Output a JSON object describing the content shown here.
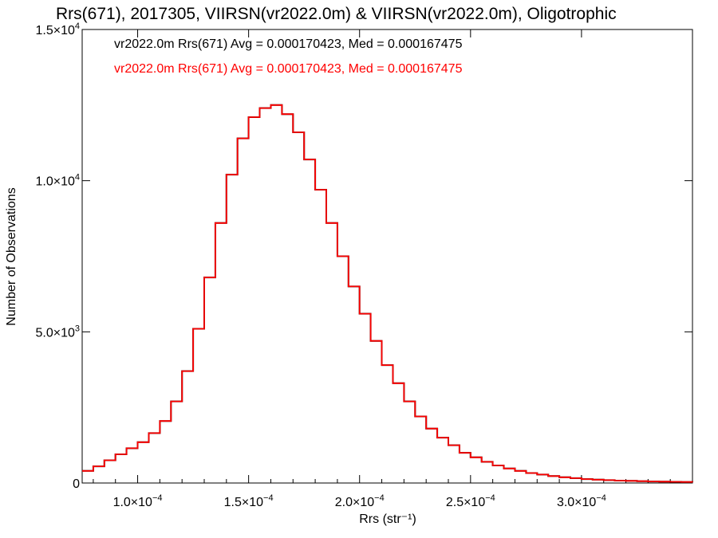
{
  "chart_data": {
    "type": "line",
    "title": "Rrs(671), 2017305, VIIRSN(vr2022.0m) & VIIRSN(vr2022.0m), Oligotrophic",
    "xlabel": "Rrs (str⁻¹)",
    "ylabel": "Number of Observations",
    "xlim": [
      7.5e-05,
      0.00035
    ],
    "ylim": [
      0,
      15000
    ],
    "x_ticks": [
      {
        "value": 0.0001,
        "mant": "1.0",
        "exp": "−4"
      },
      {
        "value": 0.00015,
        "mant": "1.5",
        "exp": "−4"
      },
      {
        "value": 0.0002,
        "mant": "2.0",
        "exp": "−4"
      },
      {
        "value": 0.00025,
        "mant": "2.5",
        "exp": "−4"
      },
      {
        "value": 0.0003,
        "mant": "3.0",
        "exp": "−4"
      }
    ],
    "y_ticks": [
      {
        "value": 0,
        "mant": "0",
        "exp": ""
      },
      {
        "value": 5000,
        "mant": "5.0",
        "exp": "3"
      },
      {
        "value": 10000,
        "mant": "1.0",
        "exp": "4"
      },
      {
        "value": 15000,
        "mant": "1.5",
        "exp": "4"
      }
    ],
    "grid": false,
    "legend_position": "top-left",
    "annotations": [
      {
        "text": "vr2022.0m Rrs(671) Avg = 0.000170423, Med = 0.000167475",
        "color": "#000000"
      },
      {
        "text": "vr2022.0m Rrs(671) Avg = 0.000170423, Med = 0.000167475",
        "color": "#ff0000"
      }
    ],
    "series": [
      {
        "color": "#000000",
        "x": [
          7.5e-05,
          8e-05,
          8.5e-05,
          9e-05,
          9.5e-05,
          0.0001,
          0.000105,
          0.00011,
          0.000115,
          0.00012,
          0.000125,
          0.00013,
          0.000135,
          0.00014,
          0.000145,
          0.00015,
          0.000155,
          0.00016,
          0.000165,
          0.00017,
          0.000175,
          0.00018,
          0.000185,
          0.00019,
          0.000195,
          0.0002,
          0.000205,
          0.00021,
          0.000215,
          0.00022,
          0.000225,
          0.00023,
          0.000235,
          0.00024,
          0.000245,
          0.00025,
          0.000255,
          0.00026,
          0.000265,
          0.00027,
          0.000275,
          0.00028,
          0.000285,
          0.00029,
          0.000295,
          0.0003,
          0.000305,
          0.00031,
          0.000315,
          0.00032,
          0.000325,
          0.00033,
          0.000335,
          0.00034,
          0.000345,
          0.00035
        ],
        "y": [
          400,
          550,
          750,
          950,
          1150,
          1350,
          1650,
          2050,
          2700,
          3700,
          5100,
          6800,
          8600,
          10200,
          11400,
          12100,
          12400,
          12500,
          12200,
          11600,
          10700,
          9700,
          8600,
          7500,
          6500,
          5600,
          4700,
          3900,
          3300,
          2700,
          2200,
          1800,
          1500,
          1250,
          1000,
          850,
          700,
          580,
          480,
          400,
          330,
          280,
          230,
          190,
          160,
          130,
          110,
          95,
          80,
          70,
          60,
          50,
          45,
          40,
          35,
          30
        ]
      },
      {
        "color": "#ff0000",
        "x": [
          7.5e-05,
          8e-05,
          8.5e-05,
          9e-05,
          9.5e-05,
          0.0001,
          0.000105,
          0.00011,
          0.000115,
          0.00012,
          0.000125,
          0.00013,
          0.000135,
          0.00014,
          0.000145,
          0.00015,
          0.000155,
          0.00016,
          0.000165,
          0.00017,
          0.000175,
          0.00018,
          0.000185,
          0.00019,
          0.000195,
          0.0002,
          0.000205,
          0.00021,
          0.000215,
          0.00022,
          0.000225,
          0.00023,
          0.000235,
          0.00024,
          0.000245,
          0.00025,
          0.000255,
          0.00026,
          0.000265,
          0.00027,
          0.000275,
          0.00028,
          0.000285,
          0.00029,
          0.000295,
          0.0003,
          0.000305,
          0.00031,
          0.000315,
          0.00032,
          0.000325,
          0.00033,
          0.000335,
          0.00034,
          0.000345,
          0.00035
        ],
        "y": [
          400,
          550,
          750,
          950,
          1150,
          1350,
          1650,
          2050,
          2700,
          3700,
          5100,
          6800,
          8600,
          10200,
          11400,
          12100,
          12400,
          12500,
          12200,
          11600,
          10700,
          9700,
          8600,
          7500,
          6500,
          5600,
          4700,
          3900,
          3300,
          2700,
          2200,
          1800,
          1500,
          1250,
          1000,
          850,
          700,
          580,
          480,
          400,
          330,
          280,
          230,
          190,
          160,
          130,
          110,
          95,
          80,
          70,
          60,
          50,
          45,
          40,
          35,
          30
        ]
      }
    ]
  }
}
